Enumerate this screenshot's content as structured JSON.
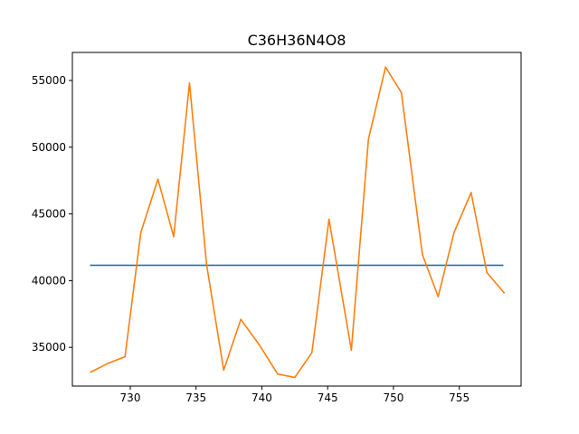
{
  "chart_data": {
    "type": "line",
    "title": "C36H36N4O8",
    "xlabel": "",
    "ylabel": "",
    "xlim": [
      725.6,
      759.7
    ],
    "ylim": [
      32100,
      57100
    ],
    "xticks": [
      730,
      735,
      740,
      745,
      750,
      755
    ],
    "yticks": [
      35000,
      40000,
      45000,
      50000,
      55000
    ],
    "grid": false,
    "series": [
      {
        "color": "#1f77b4",
        "x": [
          727.0,
          758.3
        ],
        "y": [
          41150,
          41150
        ]
      },
      {
        "color": "#ff7f0e",
        "x": [
          727.0,
          728.3,
          729.6,
          730.8,
          732.1,
          733.3,
          734.5,
          735.8,
          737.1,
          738.4,
          739.8,
          741.2,
          742.5,
          743.8,
          745.1,
          746.8,
          748.1,
          749.4,
          750.6,
          752.2,
          753.4,
          754.6,
          755.9,
          757.1,
          758.4
        ],
        "y": [
          33150,
          33800,
          34300,
          43600,
          47600,
          43300,
          54800,
          41200,
          33300,
          37100,
          35200,
          33000,
          32750,
          34600,
          44600,
          34800,
          50600,
          56000,
          54100,
          41950,
          38800,
          43600,
          46600,
          40600,
          39100
        ]
      }
    ]
  }
}
